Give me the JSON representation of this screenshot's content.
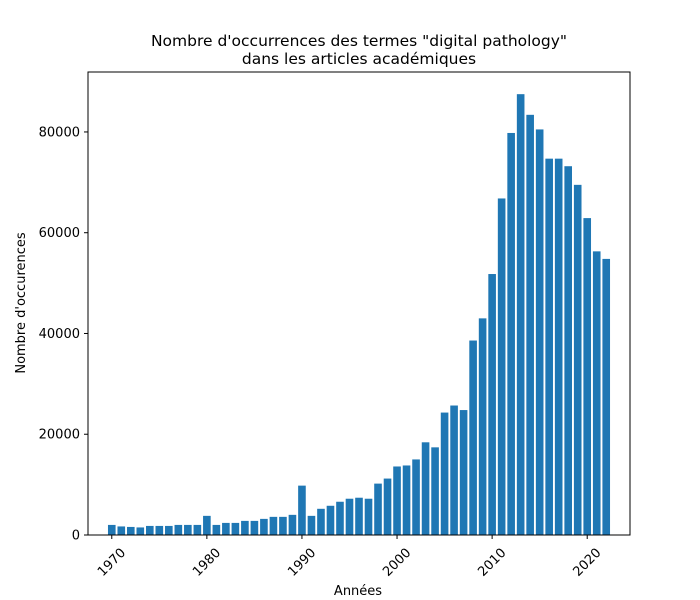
{
  "chart_data": {
    "type": "bar",
    "title_lines": [
      "Nombre d'occurrences des termes \"digital pathology\"",
      "dans les articles académiques"
    ],
    "xlabel": "Années",
    "ylabel": "Nombre d'occurences",
    "x": [
      1970,
      1971,
      1972,
      1973,
      1974,
      1975,
      1976,
      1977,
      1978,
      1979,
      1980,
      1981,
      1982,
      1983,
      1984,
      1985,
      1986,
      1987,
      1988,
      1989,
      1990,
      1991,
      1992,
      1993,
      1994,
      1995,
      1996,
      1997,
      1998,
      1999,
      2000,
      2001,
      2002,
      2003,
      2004,
      2005,
      2006,
      2007,
      2008,
      2009,
      2010,
      2011,
      2012,
      2013,
      2014,
      2015,
      2016,
      2017,
      2018,
      2019,
      2020,
      2021,
      2022
    ],
    "values": [
      2000,
      1700,
      1600,
      1500,
      1800,
      1800,
      1800,
      2000,
      2000,
      2000,
      3800,
      2000,
      2400,
      2400,
      2800,
      2800,
      3200,
      3600,
      3600,
      4000,
      9800,
      3800,
      5200,
      5800,
      6600,
      7200,
      7400,
      7200,
      10200,
      11200,
      13600,
      13800,
      15000,
      18400,
      17400,
      24300,
      25700,
      24800,
      38600,
      43000,
      51800,
      66800,
      79800,
      87500,
      83400,
      80500,
      74700,
      74700,
      73200,
      69500,
      62900,
      56300,
      54800
    ],
    "xticks": [
      1970,
      1980,
      1990,
      2000,
      2010,
      2020
    ],
    "yticks": [
      0,
      20000,
      40000,
      60000,
      80000
    ],
    "xlim": [
      1967.5,
      2024.5
    ],
    "ylim": [
      0,
      91900
    ],
    "bar_color": "#1f77b4",
    "grid": false
  }
}
